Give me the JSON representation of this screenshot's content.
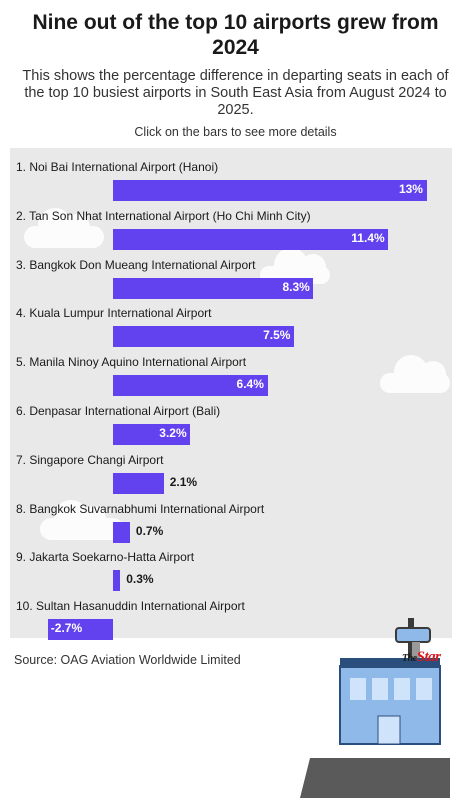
{
  "title": "Nine out of the top 10 airports grew from 2024",
  "subtitle": "This shows the percentage difference in departing seats in each of the top 10 busiest airports in South East Asia from August 2024 to 2025.",
  "hint": "Click on the bars to see more details",
  "source": "Source: OAG Aviation Worldwide Limited",
  "logo": {
    "prefix": "The",
    "name": "Star"
  },
  "colors": {
    "bar": "#6142ee",
    "background": "#e9e9e9"
  },
  "chart_data": {
    "type": "bar",
    "orientation": "horizontal",
    "title": "Nine out of the top 10 airports grew from 2024",
    "xlabel": "",
    "ylabel": "",
    "xlim": [
      -2.7,
      13
    ],
    "categories": [
      "1. Noi Bai International Airport (Hanoi)",
      "2. Tan Son Nhat International Airport (Ho Chi Minh City)",
      "3. Bangkok Don Mueang International Airport",
      "4. Kuala Lumpur International Airport",
      "5. Manila Ninoy Aquino International Airport",
      "6. Denpasar International Airport (Bali)",
      "7. Singapore Changi Airport",
      "8. Bangkok Suvarnabhumi International Airport",
      "9. Jakarta Soekarno-Hatta Airport",
      "10. Sultan Hasanuddin International Airport"
    ],
    "values": [
      13,
      11.4,
      8.3,
      7.5,
      6.4,
      3.2,
      2.1,
      0.7,
      0.3,
      -2.7
    ],
    "value_labels": [
      "13%",
      "11.4%",
      "8.3%",
      "7.5%",
      "6.4%",
      "3.2%",
      "2.1%",
      "0.7%",
      "0.3%",
      "-2.7%"
    ],
    "grid": false,
    "legend": "none"
  }
}
